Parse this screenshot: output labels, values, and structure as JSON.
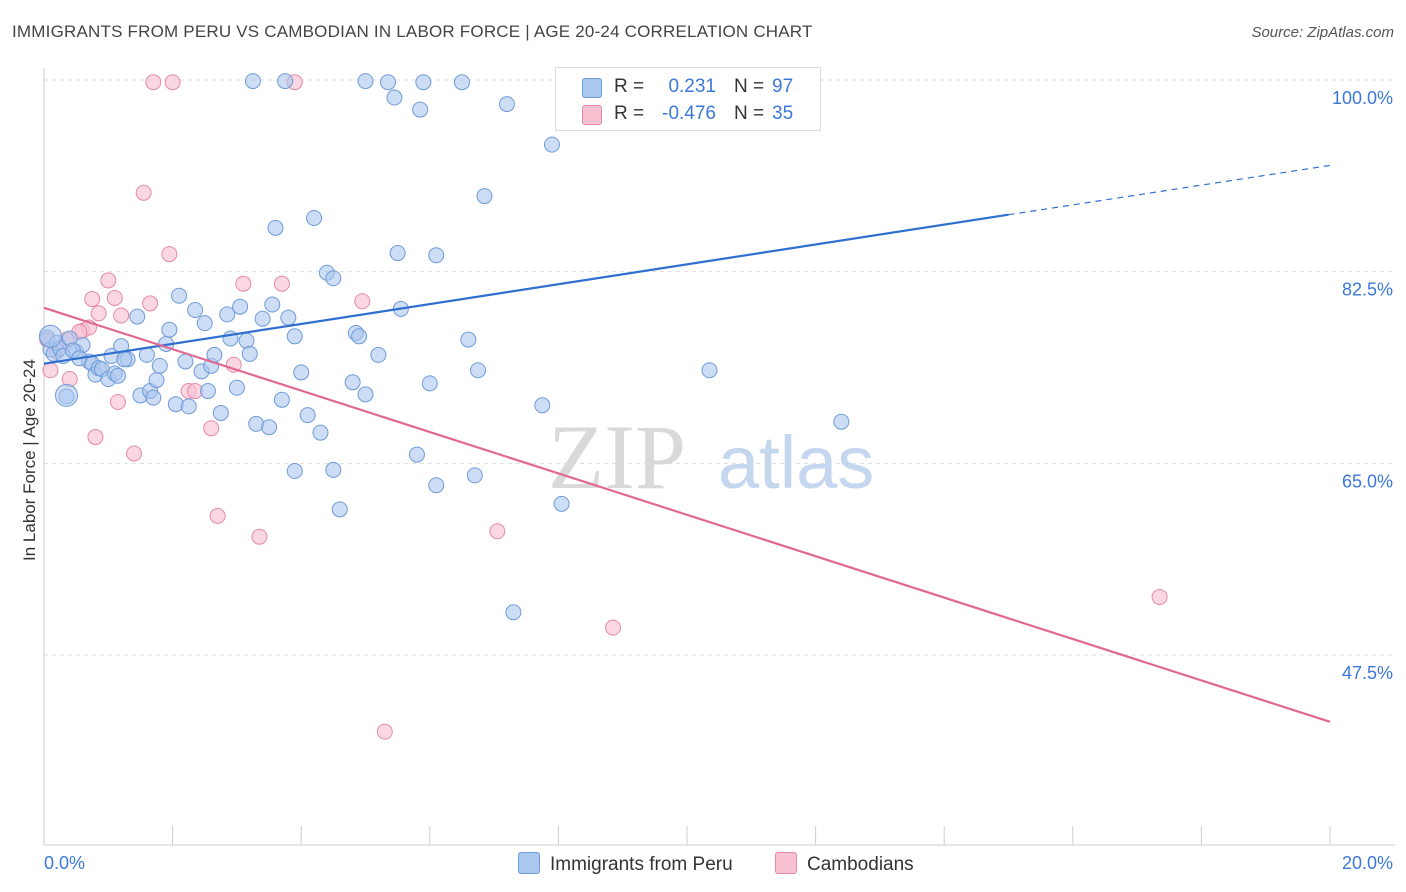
{
  "title": "IMMIGRANTS FROM PERU VS CAMBODIAN IN LABOR FORCE | AGE 20-24 CORRELATION CHART",
  "source": "Source: ZipAtlas.com",
  "watermark": {
    "zip": "ZIP",
    "atlas": "atlas"
  },
  "legend": {
    "series1": {
      "r_label": "R =",
      "r_value": "0.231",
      "n_label": "N =",
      "n_value": "97"
    },
    "series2": {
      "r_label": "R =",
      "r_value": "-0.476",
      "n_label": "N =",
      "n_value": "35"
    }
  },
  "bottom_legend": {
    "series1": "Immigrants from Peru",
    "series2": "Cambodians"
  },
  "colors": {
    "peru_fill": "#aac7ee",
    "peru_stroke": "#6f9bd8",
    "peru_line": "#2f6fcf",
    "camb_fill": "#f7c1d2",
    "camb_stroke": "#e58aa8",
    "camb_line": "#e06893",
    "grid": "#dddddd",
    "tick_label": "#3c78d8",
    "watermark": "#d9d9d9",
    "watermark_blue": "#b9cbe6"
  },
  "chart_data": {
    "type": "scatter",
    "title": "IMMIGRANTS FROM PERU VS CAMBODIAN IN LABOR FORCE | AGE 20-24 CORRELATION CHART",
    "xlabel": "",
    "ylabel": "In Labor Force | Age 20-24",
    "xlim": [
      0,
      20
    ],
    "ylim": [
      30,
      102
    ],
    "x_tick_labels": [
      "0.0%",
      "20.0%"
    ],
    "y_ticks": [
      47.5,
      65.0,
      82.5,
      100.0
    ],
    "y_tick_labels": [
      "47.5%",
      "65.0%",
      "82.5%",
      "100.0%"
    ],
    "grid": true,
    "series": [
      {
        "name": "Immigrants from Peru",
        "color": "#aac7ee",
        "trend": {
          "x": [
            0.0,
            15.0
          ],
          "y": [
            74.1,
            87.7
          ],
          "dashed_to": [
            20.0,
            92.2
          ]
        },
        "points": [
          [
            0.05,
            76.5
          ],
          [
            0.1,
            75.4
          ],
          [
            0.15,
            75.0
          ],
          [
            0.2,
            76.0
          ],
          [
            0.25,
            75.5
          ],
          [
            0.3,
            74.8
          ],
          [
            0.35,
            71.1
          ],
          [
            0.4,
            76.4
          ],
          [
            0.5,
            75.2
          ],
          [
            0.6,
            75.8
          ],
          [
            0.7,
            74.3
          ],
          [
            0.75,
            74.1
          ],
          [
            0.8,
            73.1
          ],
          [
            0.85,
            73.7
          ],
          [
            0.9,
            73.6
          ],
          [
            1.0,
            72.7
          ],
          [
            1.05,
            74.8
          ],
          [
            1.1,
            73.2
          ],
          [
            1.2,
            75.7
          ],
          [
            1.3,
            74.5
          ],
          [
            1.45,
            78.4
          ],
          [
            1.5,
            71.2
          ],
          [
            1.6,
            74.9
          ],
          [
            1.65,
            71.6
          ],
          [
            1.7,
            71.0
          ],
          [
            1.8,
            73.9
          ],
          [
            1.9,
            75.9
          ],
          [
            1.95,
            77.2
          ],
          [
            2.05,
            70.4
          ],
          [
            2.1,
            80.3
          ],
          [
            2.2,
            74.3
          ],
          [
            2.25,
            70.2
          ],
          [
            2.35,
            79.0
          ],
          [
            2.45,
            73.4
          ],
          [
            2.5,
            77.8
          ],
          [
            2.55,
            71.6
          ],
          [
            2.6,
            73.9
          ],
          [
            2.65,
            74.9
          ],
          [
            2.75,
            69.6
          ],
          [
            2.85,
            78.6
          ],
          [
            2.9,
            76.4
          ],
          [
            3.0,
            71.9
          ],
          [
            3.05,
            79.3
          ],
          [
            3.15,
            76.2
          ],
          [
            3.2,
            75.0
          ],
          [
            3.3,
            68.6
          ],
          [
            3.4,
            78.2
          ],
          [
            3.5,
            68.3
          ],
          [
            3.55,
            79.5
          ],
          [
            3.6,
            86.5
          ],
          [
            3.7,
            70.8
          ],
          [
            3.8,
            78.3
          ],
          [
            3.9,
            76.6
          ],
          [
            3.9,
            64.3
          ],
          [
            4.0,
            73.3
          ],
          [
            4.1,
            69.4
          ],
          [
            4.2,
            87.4
          ],
          [
            4.3,
            67.8
          ],
          [
            4.4,
            82.4
          ],
          [
            4.5,
            64.4
          ],
          [
            4.5,
            81.9
          ],
          [
            4.6,
            60.8
          ],
          [
            4.8,
            72.4
          ],
          [
            4.85,
            76.9
          ],
          [
            4.9,
            76.6
          ],
          [
            5.0,
            71.3
          ],
          [
            5.0,
            99.9
          ],
          [
            5.2,
            74.9
          ],
          [
            5.35,
            99.8
          ],
          [
            5.45,
            98.4
          ],
          [
            5.5,
            84.2
          ],
          [
            5.55,
            79.1
          ],
          [
            5.8,
            65.8
          ],
          [
            5.85,
            97.3
          ],
          [
            5.9,
            99.8
          ],
          [
            6.0,
            72.3
          ],
          [
            6.1,
            84.0
          ],
          [
            6.1,
            63.0
          ],
          [
            6.5,
            99.8
          ],
          [
            6.6,
            76.3
          ],
          [
            6.7,
            63.9
          ],
          [
            6.75,
            73.5
          ],
          [
            6.85,
            89.4
          ],
          [
            7.2,
            97.8
          ],
          [
            7.3,
            51.4
          ],
          [
            7.75,
            70.3
          ],
          [
            7.9,
            94.1
          ],
          [
            8.05,
            61.3
          ],
          [
            3.25,
            99.9
          ],
          [
            3.75,
            99.9
          ],
          [
            1.75,
            72.6
          ],
          [
            1.25,
            74.5
          ],
          [
            0.45,
            75.3
          ],
          [
            10.35,
            73.5
          ],
          [
            12.4,
            68.8
          ],
          [
            0.55,
            74.6
          ],
          [
            1.15,
            73.0
          ]
        ],
        "big_points": [
          [
            0.1,
            76.6
          ],
          [
            0.35,
            71.2
          ]
        ]
      },
      {
        "name": "Cambodians",
        "color": "#f7c1d2",
        "trend": {
          "x": [
            0.0,
            20.0
          ],
          "y": [
            79.2,
            41.4
          ]
        },
        "points": [
          [
            0.05,
            76.3
          ],
          [
            0.1,
            73.5
          ],
          [
            0.2,
            75.2
          ],
          [
            0.35,
            76.3
          ],
          [
            0.4,
            72.7
          ],
          [
            0.6,
            77.1
          ],
          [
            0.7,
            77.4
          ],
          [
            0.75,
            80.0
          ],
          [
            0.8,
            67.4
          ],
          [
            0.85,
            78.7
          ],
          [
            1.0,
            81.7
          ],
          [
            1.1,
            80.1
          ],
          [
            1.15,
            70.6
          ],
          [
            1.4,
            65.9
          ],
          [
            1.55,
            89.7
          ],
          [
            1.65,
            79.6
          ],
          [
            1.7,
            99.8
          ],
          [
            1.95,
            84.1
          ],
          [
            2.0,
            99.8
          ],
          [
            2.25,
            71.6
          ],
          [
            2.35,
            71.6
          ],
          [
            2.6,
            68.2
          ],
          [
            2.7,
            60.2
          ],
          [
            2.95,
            74.0
          ],
          [
            3.1,
            81.4
          ],
          [
            3.35,
            58.3
          ],
          [
            3.7,
            81.4
          ],
          [
            3.9,
            99.8
          ],
          [
            4.95,
            79.8
          ],
          [
            5.3,
            40.5
          ],
          [
            7.05,
            58.8
          ],
          [
            8.85,
            50.0
          ],
          [
            17.35,
            52.8
          ],
          [
            0.55,
            77.0
          ],
          [
            1.2,
            78.5
          ]
        ]
      }
    ]
  }
}
